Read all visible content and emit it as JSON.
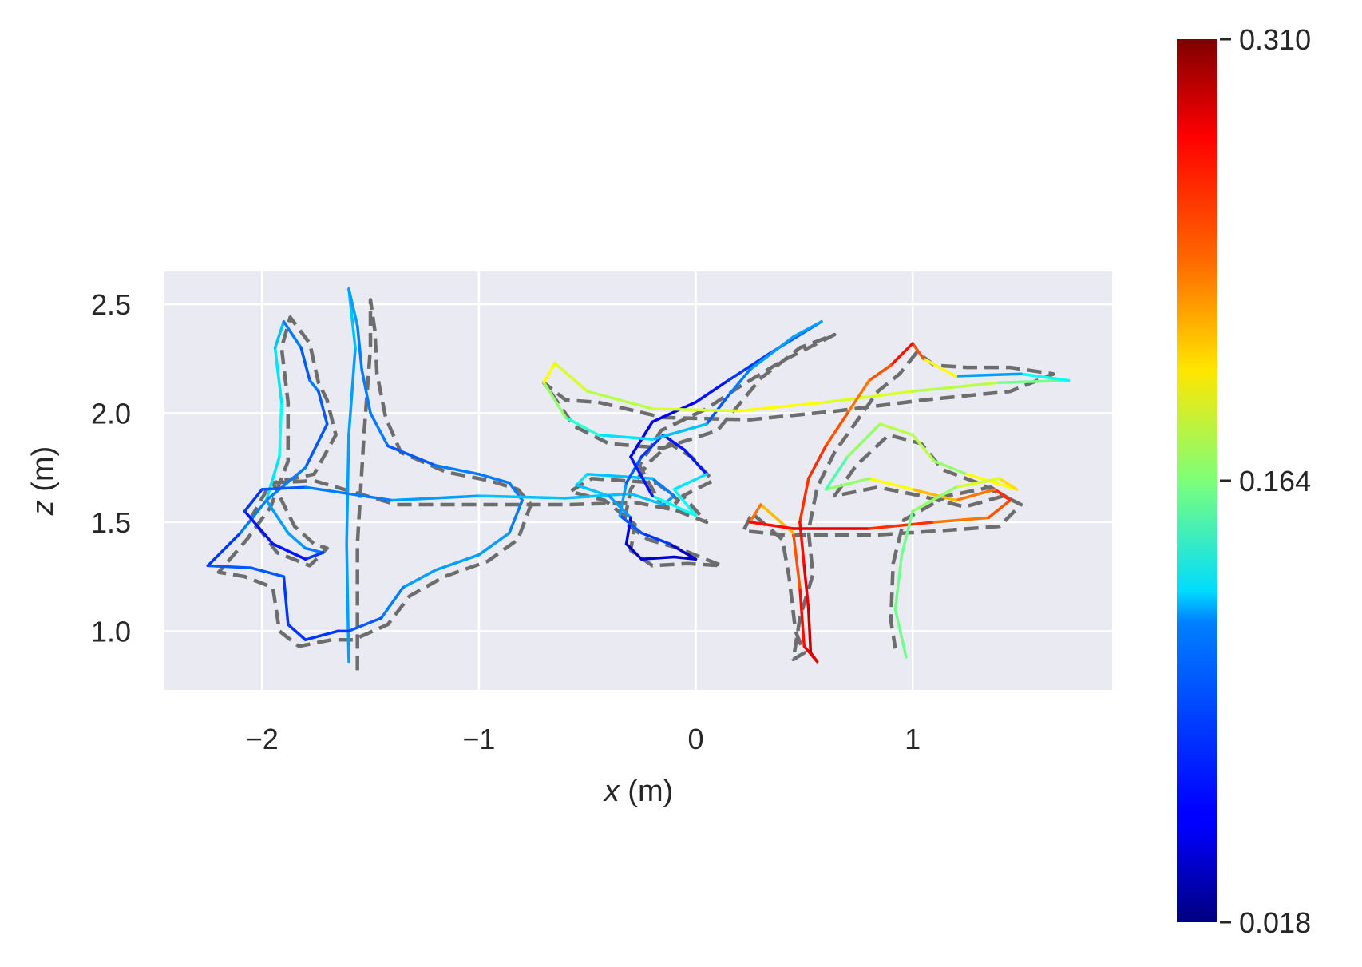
{
  "chart_data": {
    "type": "line",
    "subtype": "trajectory-error-plot",
    "xlabel": {
      "var": "x",
      "unit": " (m)"
    },
    "ylabel": {
      "var": "z",
      "unit": " (m)"
    },
    "xlim": [
      -2.45,
      1.92
    ],
    "ylim": [
      0.73,
      2.65
    ],
    "x_ticks": [
      -2,
      -1,
      0,
      1
    ],
    "x_tick_labels": [
      "−2",
      "−1",
      "0",
      "1"
    ],
    "y_ticks": [
      1.0,
      1.5,
      2.0,
      2.5
    ],
    "y_tick_labels": [
      "1.0",
      "1.5",
      "2.0",
      "2.5"
    ],
    "grid": true,
    "legend": "none",
    "background_color": "#eaeaf2",
    "reference_line_color": "#666666",
    "colorbar": {
      "colormap": "jet",
      "min": 0.018,
      "max": 0.31,
      "ticks": [
        0.018,
        0.164,
        0.31
      ],
      "tick_labels": [
        "0.018",
        "0.164",
        "0.310"
      ]
    },
    "series": [
      {
        "role": "estimated",
        "points": [
          [
            -1.6,
            0.86
          ],
          [
            -1.61,
            1.4
          ],
          [
            -1.6,
            1.9
          ],
          [
            -1.57,
            2.3
          ],
          [
            -1.6,
            2.57
          ],
          [
            -1.56,
            2.4
          ],
          [
            -1.54,
            2.2
          ],
          [
            -1.5,
            2.0
          ],
          [
            -1.42,
            1.85
          ],
          [
            -1.2,
            1.76
          ],
          [
            -1.0,
            1.72
          ],
          [
            -0.86,
            1.68
          ],
          [
            -0.8,
            1.6
          ],
          [
            -0.86,
            1.45
          ],
          [
            -1.0,
            1.35
          ],
          [
            -1.2,
            1.28
          ],
          [
            -1.35,
            1.2
          ],
          [
            -1.45,
            1.06
          ],
          [
            -1.6,
            1.0
          ],
          [
            -1.65,
            1.0
          ],
          [
            -1.8,
            0.96
          ],
          [
            -1.88,
            1.03
          ],
          [
            -1.9,
            1.25
          ],
          [
            -2.05,
            1.29
          ],
          [
            -2.25,
            1.3
          ],
          [
            -2.1,
            1.45
          ],
          [
            -1.98,
            1.6
          ],
          [
            -1.92,
            1.8
          ],
          [
            -1.91,
            2.05
          ],
          [
            -1.94,
            2.3
          ],
          [
            -1.9,
            2.42
          ],
          [
            -1.82,
            2.3
          ],
          [
            -1.78,
            2.15
          ],
          [
            -1.74,
            2.1
          ],
          [
            -1.7,
            1.95
          ],
          [
            -1.8,
            1.75
          ],
          [
            -1.98,
            1.6
          ],
          [
            -1.88,
            1.45
          ],
          [
            -1.8,
            1.38
          ],
          [
            -1.72,
            1.36
          ],
          [
            -1.8,
            1.33
          ],
          [
            -1.95,
            1.4
          ],
          [
            -2.08,
            1.55
          ],
          [
            -2.0,
            1.65
          ],
          [
            -1.8,
            1.66
          ],
          [
            -1.4,
            1.6
          ],
          [
            -1.0,
            1.62
          ],
          [
            -0.6,
            1.61
          ],
          [
            -0.3,
            1.63
          ],
          [
            -0.15,
            1.58
          ],
          [
            -0.1,
            1.62
          ],
          [
            -0.2,
            1.7
          ],
          [
            -0.5,
            1.72
          ],
          [
            -0.55,
            1.67
          ],
          [
            -0.4,
            1.62
          ],
          [
            -0.3,
            1.52
          ],
          [
            -0.32,
            1.4
          ],
          [
            -0.25,
            1.33
          ],
          [
            -0.1,
            1.34
          ],
          [
            0.0,
            1.33
          ],
          [
            -0.12,
            1.4
          ],
          [
            -0.25,
            1.45
          ],
          [
            -0.35,
            1.53
          ],
          [
            -0.32,
            1.68
          ],
          [
            -0.25,
            1.8
          ],
          [
            -0.15,
            1.9
          ],
          [
            -0.05,
            1.83
          ],
          [
            0.05,
            1.72
          ],
          [
            -0.1,
            1.65
          ],
          [
            0.0,
            1.53
          ],
          [
            -0.2,
            1.62
          ],
          [
            -0.3,
            1.8
          ],
          [
            -0.2,
            1.96
          ],
          [
            0.0,
            2.05
          ],
          [
            0.15,
            2.15
          ],
          [
            0.35,
            2.28
          ],
          [
            0.58,
            2.42
          ],
          [
            0.45,
            2.35
          ],
          [
            0.25,
            2.2
          ],
          [
            0.15,
            2.08
          ],
          [
            0.05,
            1.95
          ],
          [
            -0.2,
            1.88
          ],
          [
            -0.45,
            1.9
          ],
          [
            -0.6,
            1.98
          ],
          [
            -0.7,
            2.14
          ],
          [
            -0.65,
            2.23
          ],
          [
            -0.5,
            2.1
          ],
          [
            -0.2,
            2.02
          ],
          [
            0.2,
            2.01
          ],
          [
            0.6,
            2.05
          ],
          [
            1.0,
            2.1
          ],
          [
            1.4,
            2.14
          ],
          [
            1.72,
            2.15
          ],
          [
            1.5,
            2.18
          ],
          [
            1.2,
            2.17
          ],
          [
            1.05,
            2.25
          ],
          [
            1.0,
            2.32
          ],
          [
            0.9,
            2.22
          ],
          [
            0.8,
            2.15
          ],
          [
            0.7,
            2.0
          ],
          [
            0.6,
            1.85
          ],
          [
            0.52,
            1.7
          ],
          [
            0.48,
            1.5
          ],
          [
            0.5,
            1.3
          ],
          [
            0.52,
            1.1
          ],
          [
            0.53,
            0.9
          ],
          [
            0.56,
            0.86
          ],
          [
            0.5,
            0.93
          ],
          [
            0.48,
            1.2
          ],
          [
            0.45,
            1.45
          ],
          [
            0.3,
            1.58
          ],
          [
            0.25,
            1.5
          ],
          [
            0.45,
            1.47
          ],
          [
            0.8,
            1.47
          ],
          [
            1.1,
            1.5
          ],
          [
            1.35,
            1.52
          ],
          [
            1.45,
            1.6
          ],
          [
            1.38,
            1.65
          ],
          [
            1.2,
            1.6
          ],
          [
            1.0,
            1.65
          ],
          [
            0.8,
            1.7
          ],
          [
            0.6,
            1.65
          ],
          [
            0.7,
            1.8
          ],
          [
            0.85,
            1.95
          ],
          [
            1.0,
            1.9
          ],
          [
            1.1,
            1.78
          ],
          [
            1.25,
            1.72
          ],
          [
            1.48,
            1.65
          ],
          [
            1.4,
            1.7
          ],
          [
            1.2,
            1.66
          ],
          [
            1.0,
            1.55
          ],
          [
            0.95,
            1.35
          ],
          [
            0.92,
            1.1
          ],
          [
            0.97,
            0.88
          ]
        ]
      },
      {
        "role": "reference",
        "points": [
          [
            -1.56,
            0.82
          ],
          [
            -1.56,
            1.4
          ],
          [
            -1.53,
            1.9
          ],
          [
            -1.5,
            2.3
          ],
          [
            -1.5,
            2.52
          ],
          [
            -1.48,
            2.38
          ],
          [
            -1.47,
            2.18
          ],
          [
            -1.43,
            1.98
          ],
          [
            -1.36,
            1.82
          ],
          [
            -1.15,
            1.73
          ],
          [
            -0.95,
            1.69
          ],
          [
            -0.82,
            1.65
          ],
          [
            -0.76,
            1.58
          ],
          [
            -0.82,
            1.42
          ],
          [
            -0.96,
            1.32
          ],
          [
            -1.16,
            1.25
          ],
          [
            -1.32,
            1.16
          ],
          [
            -1.42,
            1.03
          ],
          [
            -1.58,
            0.96
          ],
          [
            -1.68,
            0.96
          ],
          [
            -1.83,
            0.93
          ],
          [
            -1.92,
            1.0
          ],
          [
            -1.95,
            1.2
          ],
          [
            -2.08,
            1.25
          ],
          [
            -2.2,
            1.27
          ],
          [
            -2.07,
            1.42
          ],
          [
            -1.96,
            1.57
          ],
          [
            -1.88,
            1.78
          ],
          [
            -1.88,
            2.05
          ],
          [
            -1.91,
            2.3
          ],
          [
            -1.87,
            2.44
          ],
          [
            -1.78,
            2.32
          ],
          [
            -1.74,
            2.14
          ],
          [
            -1.7,
            2.06
          ],
          [
            -1.66,
            1.9
          ],
          [
            -1.76,
            1.72
          ],
          [
            -1.95,
            1.68
          ],
          [
            -1.85,
            1.48
          ],
          [
            -1.76,
            1.4
          ],
          [
            -1.7,
            1.38
          ],
          [
            -1.78,
            1.3
          ],
          [
            -1.93,
            1.36
          ],
          [
            -2.05,
            1.52
          ],
          [
            -1.96,
            1.68
          ],
          [
            -1.76,
            1.69
          ],
          [
            -1.38,
            1.58
          ],
          [
            -0.98,
            1.58
          ],
          [
            -0.58,
            1.58
          ],
          [
            -0.28,
            1.59
          ],
          [
            -0.12,
            1.56
          ],
          [
            -0.08,
            1.6
          ],
          [
            -0.18,
            1.68
          ],
          [
            -0.48,
            1.7
          ],
          [
            -0.58,
            1.64
          ],
          [
            -0.42,
            1.6
          ],
          [
            -0.28,
            1.49
          ],
          [
            -0.3,
            1.37
          ],
          [
            -0.2,
            1.3
          ],
          [
            -0.04,
            1.31
          ],
          [
            0.12,
            1.3
          ],
          [
            -0.08,
            1.38
          ],
          [
            -0.22,
            1.42
          ],
          [
            -0.33,
            1.5
          ],
          [
            -0.3,
            1.65
          ],
          [
            -0.22,
            1.77
          ],
          [
            -0.12,
            1.86
          ],
          [
            -0.02,
            1.8
          ],
          [
            0.08,
            1.69
          ],
          [
            -0.06,
            1.62
          ],
          [
            0.05,
            1.5
          ],
          [
            -0.16,
            1.58
          ],
          [
            -0.26,
            1.76
          ],
          [
            -0.16,
            1.92
          ],
          [
            0.05,
            2.02
          ],
          [
            0.2,
            2.12
          ],
          [
            0.4,
            2.24
          ],
          [
            0.64,
            2.36
          ],
          [
            0.48,
            2.3
          ],
          [
            0.3,
            2.16
          ],
          [
            0.2,
            2.04
          ],
          [
            0.1,
            1.92
          ],
          [
            -0.15,
            1.84
          ],
          [
            -0.4,
            1.86
          ],
          [
            -0.56,
            1.94
          ],
          [
            -0.7,
            2.14
          ],
          [
            -0.6,
            2.06
          ],
          [
            -0.45,
            2.05
          ],
          [
            -0.15,
            1.98
          ],
          [
            0.25,
            1.97
          ],
          [
            0.65,
            2.01
          ],
          [
            1.05,
            2.06
          ],
          [
            1.45,
            2.1
          ],
          [
            1.65,
            2.18
          ],
          [
            1.45,
            2.21
          ],
          [
            1.25,
            2.21
          ],
          [
            1.1,
            2.22
          ],
          [
            1.02,
            2.28
          ],
          [
            0.94,
            2.18
          ],
          [
            0.84,
            2.1
          ],
          [
            0.74,
            1.96
          ],
          [
            0.64,
            1.82
          ],
          [
            0.56,
            1.66
          ],
          [
            0.52,
            1.46
          ],
          [
            0.54,
            1.26
          ],
          [
            0.48,
            1.06
          ],
          [
            0.45,
            0.87
          ],
          [
            0.5,
            0.9
          ],
          [
            0.46,
            1.0
          ],
          [
            0.43,
            1.25
          ],
          [
            0.4,
            1.42
          ],
          [
            0.26,
            1.54
          ],
          [
            0.22,
            1.46
          ],
          [
            0.42,
            1.44
          ],
          [
            0.82,
            1.44
          ],
          [
            1.12,
            1.46
          ],
          [
            1.4,
            1.48
          ],
          [
            1.5,
            1.58
          ],
          [
            1.42,
            1.62
          ],
          [
            1.24,
            1.57
          ],
          [
            1.04,
            1.62
          ],
          [
            0.84,
            1.66
          ],
          [
            0.64,
            1.62
          ],
          [
            0.74,
            1.76
          ],
          [
            0.89,
            1.9
          ],
          [
            1.04,
            1.86
          ],
          [
            1.14,
            1.74
          ],
          [
            1.3,
            1.68
          ],
          [
            1.44,
            1.61
          ],
          [
            1.36,
            1.66
          ],
          [
            1.16,
            1.62
          ],
          [
            0.96,
            1.51
          ],
          [
            0.91,
            1.31
          ],
          [
            0.9,
            1.05
          ],
          [
            0.92,
            0.92
          ]
        ]
      }
    ],
    "segment_errors": [
      0.1,
      0.1,
      0.1,
      0.11,
      0.1,
      0.09,
      0.09,
      0.09,
      0.08,
      0.09,
      0.09,
      0.09,
      0.09,
      0.1,
      0.1,
      0.1,
      0.09,
      0.08,
      0.07,
      0.07,
      0.07,
      0.07,
      0.08,
      0.08,
      0.07,
      0.09,
      0.12,
      0.13,
      0.12,
      0.11,
      0.09,
      0.08,
      0.09,
      0.08,
      0.08,
      0.09,
      0.1,
      0.1,
      0.09,
      0.07,
      0.06,
      0.06,
      0.07,
      0.08,
      0.09,
      0.1,
      0.11,
      0.11,
      0.11,
      0.1,
      0.09,
      0.11,
      0.12,
      0.11,
      0.1,
      0.05,
      0.04,
      0.04,
      0.04,
      0.04,
      0.07,
      0.08,
      0.1,
      0.08,
      0.07,
      0.06,
      0.06,
      0.12,
      0.13,
      0.13,
      0.06,
      0.05,
      0.05,
      0.06,
      0.07,
      0.08,
      0.1,
      0.1,
      0.09,
      0.08,
      0.11,
      0.12,
      0.14,
      0.17,
      0.2,
      0.19,
      0.18,
      0.19,
      0.2,
      0.19,
      0.18,
      0.16,
      0.13,
      0.1,
      0.2,
      0.25,
      0.27,
      0.25,
      0.24,
      0.25,
      0.26,
      0.26,
      0.27,
      0.28,
      0.29,
      0.3,
      0.28,
      0.27,
      0.25,
      0.22,
      0.24,
      0.27,
      0.28,
      0.26,
      0.24,
      0.25,
      0.26,
      0.24,
      0.22,
      0.2,
      0.17,
      0.15,
      0.17,
      0.18,
      0.18,
      0.17,
      0.2,
      0.21,
      0.19,
      0.17,
      0.16,
      0.16,
      0.16,
      0.15
    ]
  }
}
